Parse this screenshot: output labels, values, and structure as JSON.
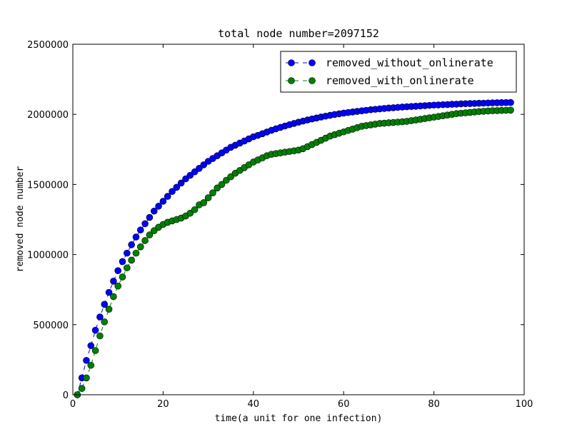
{
  "chart_data": {
    "type": "line",
    "title": "total node number=2097152",
    "xlabel": "time(a unit for one infection)",
    "ylabel": "removed node number",
    "xlim": [
      0,
      100
    ],
    "ylim": [
      0,
      2500000
    ],
    "xticks": [
      0,
      20,
      40,
      60,
      80,
      100
    ],
    "yticks": [
      0,
      500000,
      1000000,
      1500000,
      2000000,
      2500000
    ],
    "grid": false,
    "legend_position": "upper right",
    "series": [
      {
        "name": "removed_without_onlinerate",
        "color": "#0000ff",
        "marker": "circle",
        "line_style": "dashed",
        "x": [
          1,
          2,
          3,
          4,
          5,
          6,
          7,
          8,
          9,
          10,
          11,
          12,
          13,
          14,
          15,
          16,
          17,
          18,
          19,
          20,
          21,
          22,
          23,
          24,
          25,
          26,
          27,
          28,
          29,
          30,
          31,
          32,
          33,
          34,
          35,
          36,
          37,
          38,
          39,
          40,
          41,
          42,
          43,
          44,
          45,
          46,
          47,
          48,
          49,
          50,
          51,
          52,
          53,
          54,
          55,
          56,
          57,
          58,
          59,
          60,
          61,
          62,
          63,
          64,
          65,
          66,
          67,
          68,
          69,
          70,
          71,
          72,
          73,
          74,
          75,
          76,
          77,
          78,
          79,
          80,
          81,
          82,
          83,
          84,
          85,
          86,
          87,
          88,
          89,
          90,
          91,
          92,
          93,
          94,
          95,
          96,
          97
        ],
        "y": [
          0,
          120000,
          245000,
          350000,
          460000,
          555000,
          645000,
          730000,
          810000,
          885000,
          950000,
          1010000,
          1070000,
          1125000,
          1175000,
          1220000,
          1265000,
          1310000,
          1345000,
          1380000,
          1415000,
          1450000,
          1480000,
          1510000,
          1540000,
          1565000,
          1590000,
          1615000,
          1640000,
          1665000,
          1685000,
          1705000,
          1725000,
          1745000,
          1765000,
          1780000,
          1795000,
          1810000,
          1825000,
          1840000,
          1850000,
          1862000,
          1874000,
          1886000,
          1897000,
          1907000,
          1917000,
          1926000,
          1935000,
          1944000,
          1952000,
          1960000,
          1967000,
          1974000,
          1981000,
          1987000,
          1993000,
          1999000,
          2004000,
          2009000,
          2013000,
          2017000,
          2021000,
          2025000,
          2029000,
          2033000,
          2036000,
          2039000,
          2042000,
          2045000,
          2047000,
          2050000,
          2052000,
          2054000,
          2056000,
          2058000,
          2060000,
          2062000,
          2064000,
          2066000,
          2067000,
          2069000,
          2070000,
          2072000,
          2073000,
          2075000,
          2076000,
          2077000,
          2078000,
          2079000,
          2080000,
          2081000,
          2082000,
          2083000,
          2083500,
          2084000,
          2084500
        ]
      },
      {
        "name": "removed_with_onlinerate",
        "color": "#008000",
        "marker": "circle",
        "line_style": "dashed",
        "x": [
          1,
          2,
          3,
          4,
          5,
          6,
          7,
          8,
          9,
          10,
          11,
          12,
          13,
          14,
          15,
          16,
          17,
          18,
          19,
          20,
          21,
          22,
          23,
          24,
          25,
          26,
          27,
          28,
          29,
          30,
          31,
          32,
          33,
          34,
          35,
          36,
          37,
          38,
          39,
          40,
          41,
          42,
          43,
          44,
          45,
          46,
          47,
          48,
          49,
          50,
          51,
          52,
          53,
          54,
          55,
          56,
          57,
          58,
          59,
          60,
          61,
          62,
          63,
          64,
          65,
          66,
          67,
          68,
          69,
          70,
          71,
          72,
          73,
          74,
          75,
          76,
          77,
          78,
          79,
          80,
          81,
          82,
          83,
          84,
          85,
          86,
          87,
          88,
          89,
          90,
          91,
          92,
          93,
          94,
          95,
          96,
          97
        ],
        "y": [
          0,
          45000,
          120000,
          210000,
          315000,
          420000,
          520000,
          610000,
          700000,
          775000,
          840000,
          905000,
          960000,
          1010000,
          1055000,
          1100000,
          1140000,
          1170000,
          1195000,
          1215000,
          1230000,
          1240000,
          1250000,
          1260000,
          1275000,
          1295000,
          1320000,
          1355000,
          1370000,
          1405000,
          1440000,
          1475000,
          1500000,
          1530000,
          1555000,
          1580000,
          1600000,
          1620000,
          1640000,
          1660000,
          1675000,
          1690000,
          1705000,
          1715000,
          1720000,
          1725000,
          1730000,
          1735000,
          1740000,
          1745000,
          1755000,
          1770000,
          1785000,
          1800000,
          1815000,
          1830000,
          1845000,
          1855000,
          1865000,
          1875000,
          1885000,
          1895000,
          1905000,
          1915000,
          1920000,
          1925000,
          1930000,
          1935000,
          1937000,
          1940000,
          1942000,
          1945000,
          1947000,
          1950000,
          1955000,
          1960000,
          1965000,
          1970000,
          1975000,
          1980000,
          1985000,
          1990000,
          1995000,
          2000000,
          2005000,
          2008000,
          2011000,
          2014000,
          2017000,
          2020000,
          2022000,
          2024000,
          2026000,
          2027000,
          2028000,
          2029000,
          2030000
        ]
      }
    ]
  }
}
